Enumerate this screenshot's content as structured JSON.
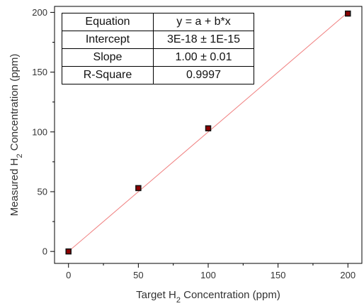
{
  "chart_data": {
    "type": "scatter",
    "xlabel": "Target H2 Concentration (ppm)",
    "ylabel": "Measured H2 Concentration (ppm)",
    "x": [
      0,
      50,
      100,
      200
    ],
    "y": [
      0,
      53,
      103,
      199
    ],
    "fit_line": {
      "intercept": 0,
      "slope": 1.0
    },
    "xlim": [
      -10,
      210
    ],
    "ylim": [
      -10,
      205
    ],
    "x_ticks": [
      0,
      50,
      100,
      150,
      200
    ],
    "y_ticks": [
      0,
      50,
      100,
      150,
      200
    ],
    "grid": false,
    "colors": {
      "marker": "#111111",
      "marker_fill": "#8b0000",
      "fit_line": "#f08080",
      "axis": "#000000"
    },
    "fit_table": [
      {
        "key": "Equation",
        "value": "y = a + b*x"
      },
      {
        "key": "Intercept",
        "value": "3E-18 ± 1E-15"
      },
      {
        "key": "Slope",
        "value": "1.00 ± 0.01"
      },
      {
        "key": "R-Square",
        "value": "0.9997"
      }
    ],
    "fit_table_position": "top-left"
  }
}
